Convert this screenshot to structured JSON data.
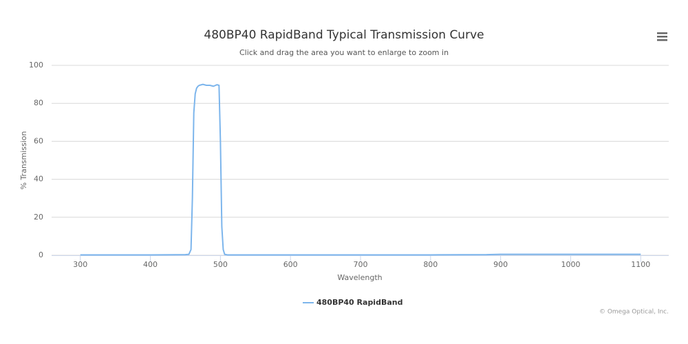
{
  "chart_data": {
    "type": "line",
    "title": "480BP40 RapidBand Typical Transmission Curve",
    "subtitle": "Click and drag the area you want to enlarge to zoom in",
    "x_label": "Wavelength",
    "y_label": "% Transmission",
    "credit": "© Omega Optical, Inc.",
    "x": [
      300,
      400,
      450,
      455,
      458,
      460,
      462,
      464,
      466,
      468,
      470,
      475,
      480,
      485,
      490,
      495,
      498,
      500,
      502,
      504,
      506,
      510,
      600,
      700,
      800,
      880,
      900,
      1000,
      1100
    ],
    "series": [
      {
        "name": "480BP40 RapidBand",
        "color": "#7cb5ec",
        "values": [
          0.2,
          0.2,
          0.3,
          0.5,
          3,
          30,
          75,
          85,
          88,
          89,
          89.5,
          90,
          89.5,
          89.5,
          89,
          89.8,
          89.5,
          60,
          15,
          3,
          0.5,
          0.2,
          0.2,
          0.2,
          0.2,
          0.3,
          0.5,
          0.5,
          0.5
        ]
      }
    ],
    "xlim": [
      259,
      1140
    ],
    "ylim": [
      0,
      100
    ],
    "xticks": [
      300,
      400,
      500,
      600,
      700,
      800,
      900,
      1000,
      1100
    ],
    "yticks": [
      0,
      20,
      40,
      60,
      80,
      100
    ],
    "grid": true
  }
}
